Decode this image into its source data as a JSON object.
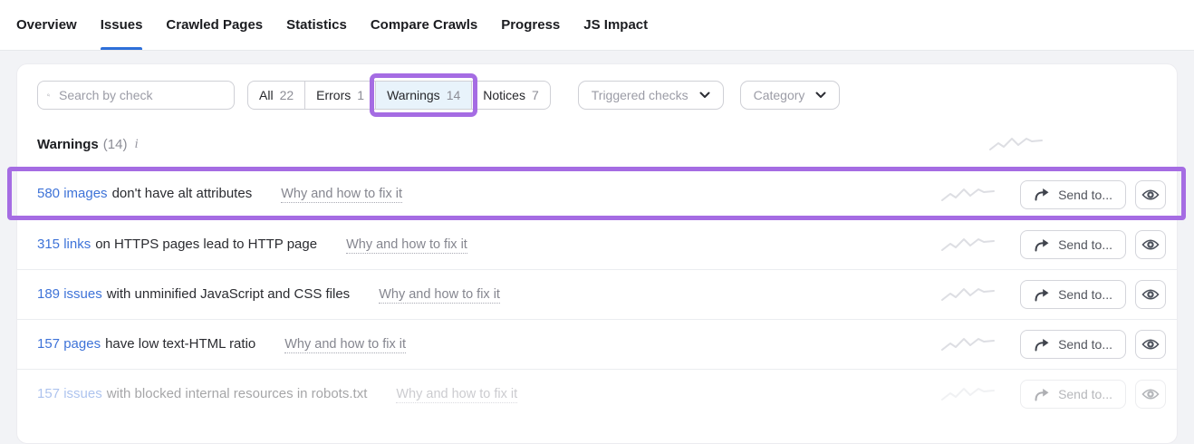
{
  "tabs": [
    {
      "label": "Overview",
      "active": false
    },
    {
      "label": "Issues",
      "active": true
    },
    {
      "label": "Crawled Pages",
      "active": false
    },
    {
      "label": "Statistics",
      "active": false
    },
    {
      "label": "Compare Crawls",
      "active": false
    },
    {
      "label": "Progress",
      "active": false
    },
    {
      "label": "JS Impact",
      "active": false
    }
  ],
  "filters": {
    "search_placeholder": "Search by check",
    "segments": [
      {
        "label": "All",
        "count": "22",
        "selected": false,
        "annotated": false
      },
      {
        "label": "Errors",
        "count": "1",
        "selected": false,
        "annotated": false
      },
      {
        "label": "Warnings",
        "count": "14",
        "selected": true,
        "annotated": true
      },
      {
        "label": "Notices",
        "count": "7",
        "selected": false,
        "annotated": false
      }
    ],
    "dropdowns": [
      {
        "label": "Triggered checks"
      },
      {
        "label": "Category"
      }
    ]
  },
  "section": {
    "title": "Warnings",
    "count": "(14)",
    "info_glyph": "i"
  },
  "rows": [
    {
      "link": "580 images",
      "text": "don't have alt attributes",
      "why": "Why and how to fix it",
      "send_label": "Send to...",
      "highlighted": true,
      "faded": false
    },
    {
      "link": "315 links",
      "text": "on HTTPS pages lead to HTTP page",
      "why": "Why and how to fix it",
      "send_label": "Send to...",
      "highlighted": false,
      "faded": false
    },
    {
      "link": "189 issues",
      "text": "with unminified JavaScript and CSS files",
      "why": "Why and how to fix it",
      "send_label": "Send to...",
      "highlighted": false,
      "faded": false
    },
    {
      "link": "157 pages",
      "text": "have low text-HTML ratio",
      "why": "Why and how to fix it",
      "send_label": "Send to...",
      "highlighted": false,
      "faded": false
    },
    {
      "link": "157 issues",
      "text": "with blocked internal resources in robots.txt",
      "why": "Why and how to fix it",
      "send_label": "Send to...",
      "highlighted": false,
      "faded": true
    }
  ],
  "colors": {
    "tab_accent": "#2e6fd9",
    "link_blue": "#3e73d8",
    "annotation_purple": "#a56ce3",
    "selected_segment_bg": "#e8f3fb",
    "sparkline_gray": "#dddee3"
  }
}
